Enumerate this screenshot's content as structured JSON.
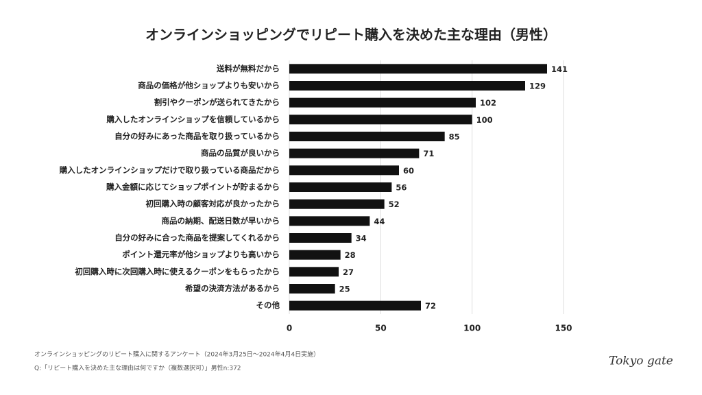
{
  "chart_data": {
    "type": "bar",
    "orientation": "horizontal",
    "title": "オンラインショッピングでリピート購入を決めた主な理由（男性）",
    "categories": [
      "送料が無料だから",
      "商品の価格が他ショップよりも安いから",
      "割引やクーポンが送られてきたから",
      "購入したオンラインショップを信頼しているから",
      "自分の好みにあった商品を取り扱っているから",
      "商品の品質が良いから",
      "購入したオンラインショップだけで取り扱っている商品だから",
      "購入金額に応じてショップポイントが貯まるから",
      "初回購入時の顧客対応が良かったから",
      "商品の納期、配送日数が早いから",
      "自分の好みに合った商品を提案してくれるから",
      "ポイント還元率が他ショップよりも高いから",
      "初回購入時に次回購入時に使えるクーポンをもらったから",
      "希望の決済方法があるから",
      "その他"
    ],
    "values": [
      141,
      129,
      102,
      100,
      85,
      71,
      60,
      56,
      52,
      44,
      34,
      28,
      27,
      25,
      72
    ],
    "color": "#111111",
    "xlim": [
      0,
      150
    ],
    "xticks": [
      0,
      50,
      100,
      150
    ],
    "grid": true,
    "notes": [
      "オンラインショッピングのリピート購入に関するアンケート（2024年3月25日〜2024年4月4日実施）",
      "Q:「リピート購入を決めた主な理由は何ですか（複数選択可）」男性n:372"
    ]
  },
  "logo": "Tokyo gate"
}
